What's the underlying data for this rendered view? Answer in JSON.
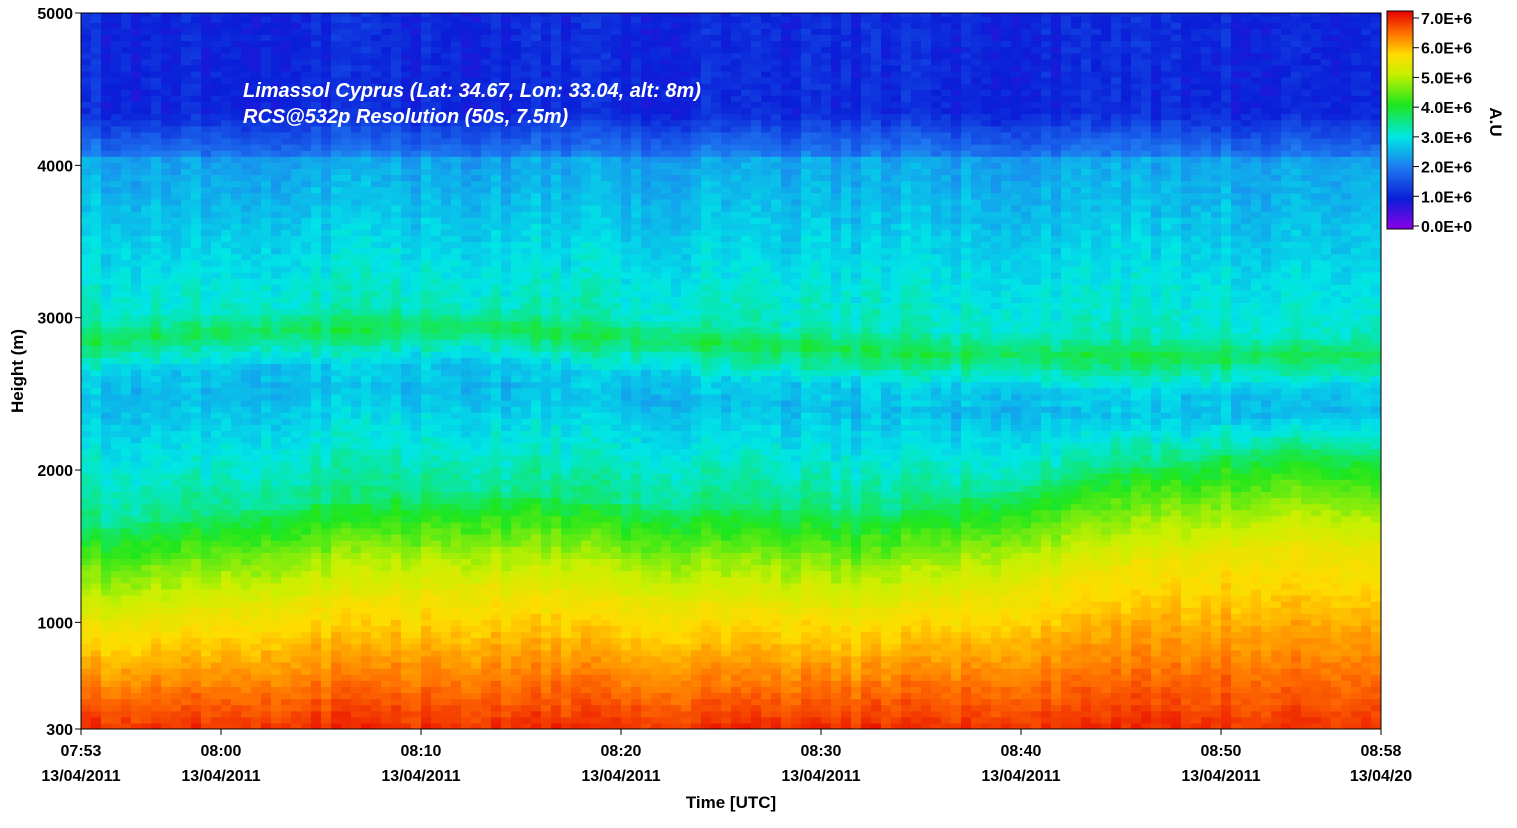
{
  "chart_data": {
    "type": "heatmap",
    "title": "",
    "annotations": [
      "Limassol Cyprus (Lat: 34.67, Lon: 33.04, alt: 8m)",
      "RCS@532p Resolution (50s, 7.5m)"
    ],
    "xlabel": "Time [UTC]",
    "ylabel": "Height (m)",
    "x_range_minutes": [
      "07:53",
      "08:58"
    ],
    "xlim": [
      0,
      65
    ],
    "ylim": [
      300,
      5000
    ],
    "x_ticks": [
      {
        "t": 0,
        "time": "07:53",
        "date": "13/04/2011"
      },
      {
        "t": 7,
        "time": "08:00",
        "date": "13/04/2011"
      },
      {
        "t": 17,
        "time": "08:10",
        "date": "13/04/2011"
      },
      {
        "t": 27,
        "time": "08:20",
        "date": "13/04/2011"
      },
      {
        "t": 37,
        "time": "08:30",
        "date": "13/04/2011"
      },
      {
        "t": 47,
        "time": "08:40",
        "date": "13/04/2011"
      },
      {
        "t": 57,
        "time": "08:50",
        "date": "13/04/2011"
      },
      {
        "t": 65,
        "time": "08:58",
        "date": "13/04/20"
      }
    ],
    "y_ticks": [
      300,
      1000,
      2000,
      3000,
      4000,
      5000
    ],
    "colorbar": {
      "label": "A.U",
      "range": [
        0,
        7000000
      ],
      "ticks": [
        "0.0E+0",
        "1.0E+6",
        "2.0E+6",
        "3.0E+6",
        "4.0E+6",
        "5.0E+6",
        "6.0E+6",
        "7.0E+6"
      ],
      "colors": [
        "#8a00e6",
        "#0a1ed8",
        "#1e78f0",
        "#00e6e6",
        "#1ee61e",
        "#c8f000",
        "#ffdc00",
        "#ff6e00",
        "#e60000"
      ]
    },
    "profile_description": {
      "times_min": [
        0,
        10,
        20,
        30,
        40,
        50,
        60,
        65
      ],
      "boundary_layer_top_m": [
        1000,
        1150,
        1250,
        1150,
        1100,
        1350,
        1550,
        1500
      ],
      "aerosol_layer_height_m": [
        2850,
        2930,
        2950,
        2850,
        2780,
        2750,
        2750,
        2760
      ]
    }
  },
  "grid": false
}
